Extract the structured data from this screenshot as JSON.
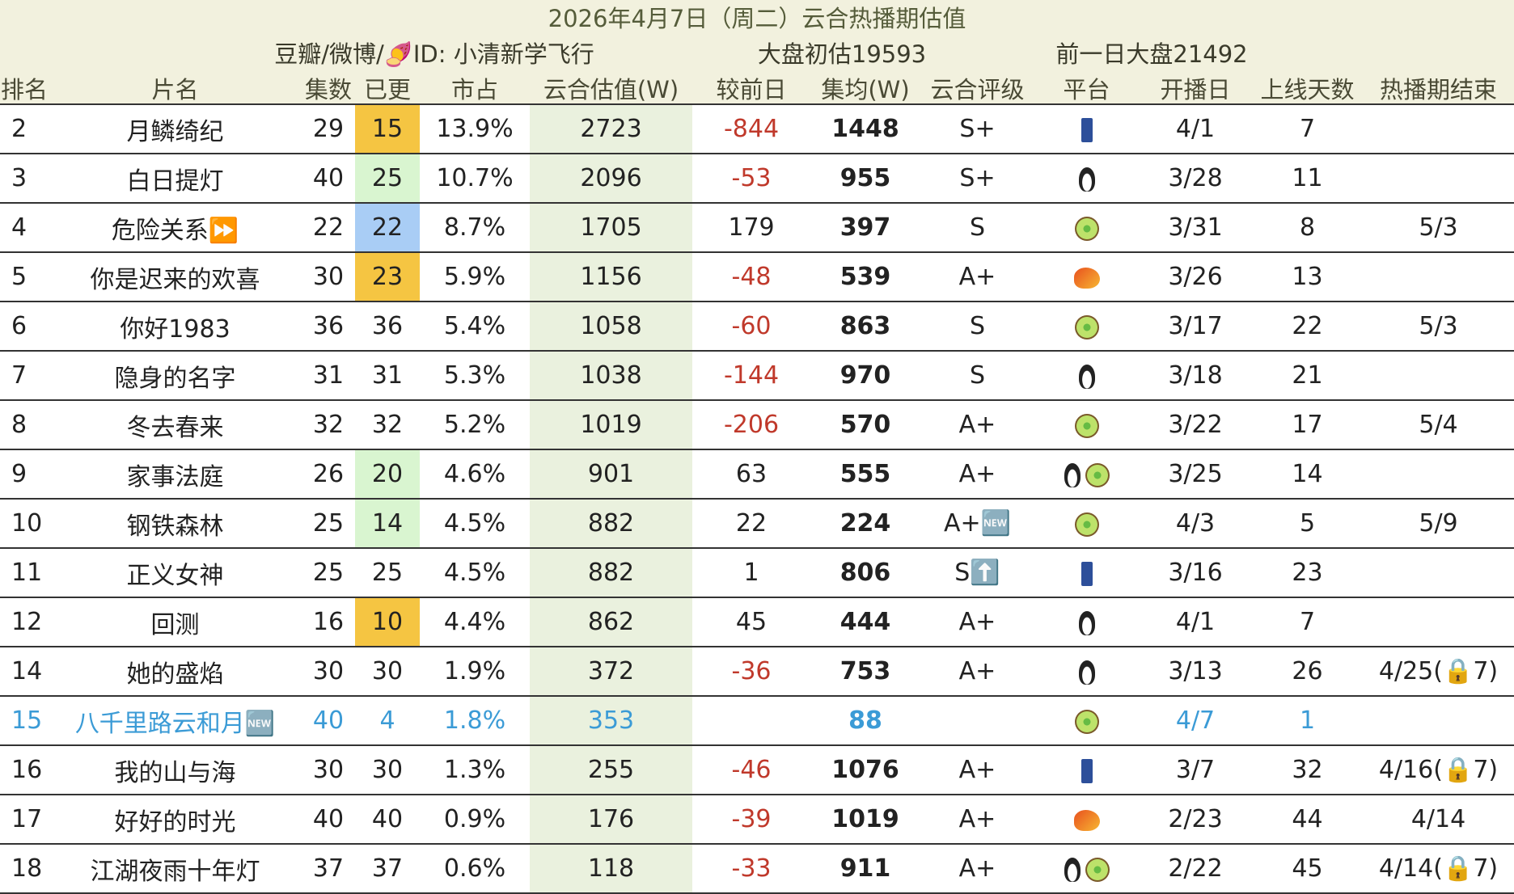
{
  "header": {
    "title": "2026年4月7日（周二）云合热播期估值",
    "source": "豆瓣/微博/🍠ID: 小清新学飞行",
    "market": "大盘初估19593",
    "previous": "前一日大盘21492"
  },
  "table": {
    "columns": [
      "排名",
      "片名",
      "集数",
      "已更",
      "市占",
      "云合估值(W)",
      "较前日",
      "集均(W)",
      "云合评级",
      "平台",
      "开播日",
      "上线天数",
      "热播期结束"
    ],
    "rows": [
      {
        "rank": "2",
        "name": "月鳞绮纪",
        "episodes": "29",
        "updated": "15",
        "share": "13.9%",
        "value": "2723",
        "change": "-844",
        "avg": "1448",
        "rating": "S+",
        "start": "4/1",
        "days": "7"
      },
      {
        "rank": "3",
        "name": "白日提灯",
        "episodes": "40",
        "updated": "25",
        "share": "10.7%",
        "value": "2096",
        "change": "-53",
        "avg": "955",
        "rating": "S+",
        "start": "3/28",
        "days": "11"
      },
      {
        "rank": "4",
        "name": "危险关系⏩",
        "episodes": "22",
        "updated": "22",
        "share": "8.7%",
        "value": "1705",
        "change": "179",
        "avg": "397",
        "rating": "S",
        "start": "3/31",
        "days": "8",
        "end": "5/3"
      },
      {
        "rank": "5",
        "name": "你是迟来的欢喜",
        "episodes": "30",
        "updated": "23",
        "share": "5.9%",
        "value": "1156",
        "change": "-48",
        "avg": "539",
        "rating": "A+",
        "start": "3/26",
        "days": "13"
      },
      {
        "rank": "6",
        "name": "你好1983",
        "episodes": "36",
        "updated": "36",
        "share": "5.4%",
        "value": "1058",
        "change": "-60",
        "avg": "863",
        "rating": "S",
        "start": "3/17",
        "days": "22",
        "end": "5/3"
      },
      {
        "rank": "7",
        "name": "隐身的名字",
        "episodes": "31",
        "updated": "31",
        "share": "5.3%",
        "value": "1038",
        "change": "-144",
        "avg": "970",
        "rating": "S",
        "start": "3/18",
        "days": "21"
      },
      {
        "rank": "8",
        "name": "冬去春来",
        "episodes": "32",
        "updated": "32",
        "share": "5.2%",
        "value": "1019",
        "change": "-206",
        "avg": "570",
        "rating": "A+",
        "start": "3/22",
        "days": "17",
        "end": "5/4"
      },
      {
        "rank": "9",
        "name": "家事法庭",
        "episodes": "26",
        "updated": "20",
        "share": "4.6%",
        "value": "901",
        "change": "63",
        "avg": "555",
        "rating": "A+",
        "start": "3/25",
        "days": "14"
      },
      {
        "rank": "10",
        "name": "钢铁森林",
        "episodes": "25",
        "updated": "14",
        "share": "4.5%",
        "value": "882",
        "change": "22",
        "avg": "224",
        "rating": "A+🆕",
        "start": "4/3",
        "days": "5",
        "end": "5/9"
      },
      {
        "rank": "11",
        "name": "正义女神",
        "episodes": "25",
        "updated": "25",
        "share": "4.5%",
        "value": "882",
        "change": "1",
        "avg": "806",
        "rating": "S⬆️",
        "start": "3/16",
        "days": "23"
      },
      {
        "rank": "12",
        "name": "回测",
        "episodes": "16",
        "updated": "10",
        "share": "4.4%",
        "value": "862",
        "change": "45",
        "avg": "444",
        "rating": "A+",
        "start": "4/1",
        "days": "7"
      },
      {
        "rank": "14",
        "name": "她的盛焰",
        "episodes": "30",
        "updated": "30",
        "share": "1.9%",
        "value": "372",
        "change": "-36",
        "avg": "753",
        "rating": "A+",
        "start": "3/13",
        "days": "26",
        "end": "4/25(🔒7)"
      },
      {
        "rank": "15",
        "name": "八千里路云和月🆕",
        "episodes": "40",
        "updated": "4",
        "share": "1.8%",
        "value": "353",
        "avg": "88",
        "start": "4/7",
        "days": "1"
      },
      {
        "rank": "16",
        "name": "我的山与海",
        "episodes": "30",
        "updated": "30",
        "share": "1.3%",
        "value": "255",
        "change": "-46",
        "avg": "1076",
        "rating": "A+",
        "start": "3/7",
        "days": "32",
        "end": "4/16(🔒7)"
      },
      {
        "rank": "17",
        "name": "好好的时光",
        "episodes": "40",
        "updated": "40",
        "share": "0.9%",
        "value": "176",
        "change": "-39",
        "avg": "1019",
        "rating": "A+",
        "start": "2/23",
        "days": "44",
        "end": "4/14"
      },
      {
        "rank": "18",
        "name": "江湖夜雨十年灯",
        "episodes": "37",
        "updated": "37",
        "share": "0.6%",
        "value": "118",
        "change": "-33",
        "avg": "911",
        "rating": "A+",
        "start": "2/22",
        "days": "45",
        "end": "4/14(🔒7)"
      }
    ]
  }
}
